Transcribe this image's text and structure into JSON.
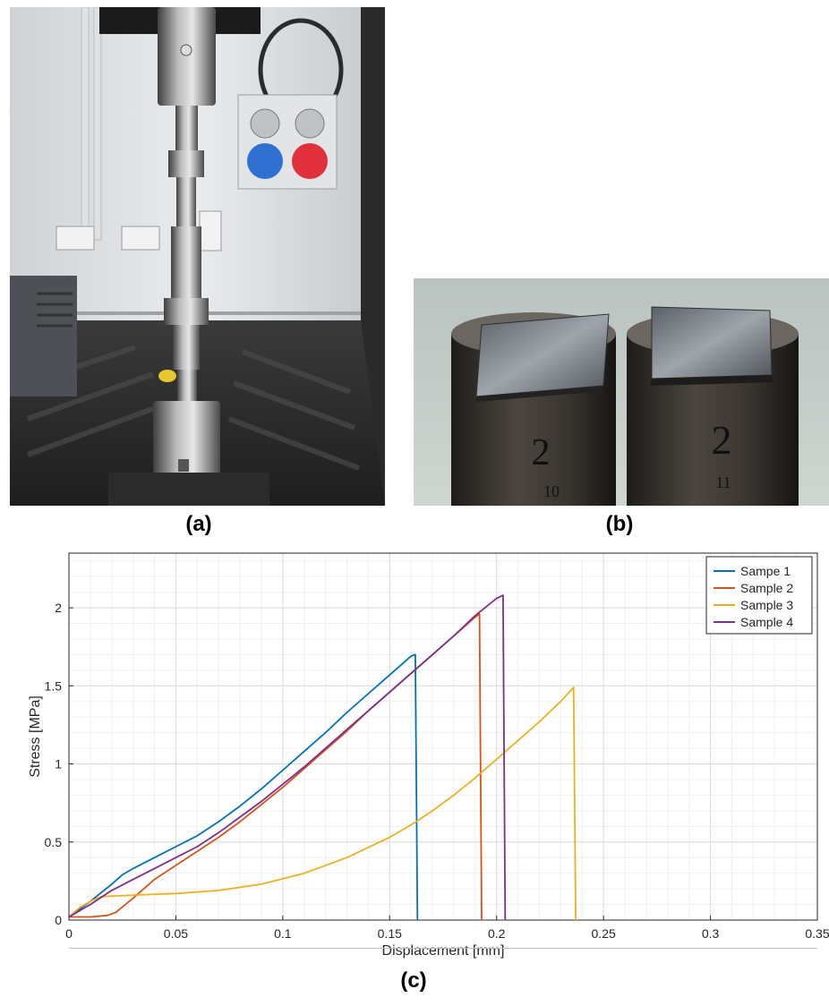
{
  "figure": {
    "captions": {
      "a": "(a)",
      "b": "(b)",
      "c": "(c)"
    }
  },
  "photo_a": {
    "icon": "tensile-testing-machine-photo"
  },
  "photo_b": {
    "icon": "bonded-specimens-photo",
    "labels": [
      {
        "number": "2",
        "sub": "10"
      },
      {
        "number": "2",
        "sub": "11"
      }
    ]
  },
  "chart_data": {
    "type": "line",
    "xlabel": "Displacement [mm]",
    "ylabel": "Stress [MPa]",
    "xlim": [
      0,
      0.35
    ],
    "ylim": [
      0,
      2.35
    ],
    "xticks": [
      0,
      0.05,
      0.1,
      0.15,
      0.2,
      0.25,
      0.3,
      0.35
    ],
    "xtick_labels": [
      "0",
      "0.05",
      "0.1",
      "0.15",
      "0.2",
      "0.25",
      "0.3",
      "0.35"
    ],
    "yticks": [
      0,
      0.5,
      1,
      1.5,
      2
    ],
    "ytick_labels": [
      "0",
      "0.5",
      "1",
      "1.5",
      "2"
    ],
    "grid": true,
    "minor_grid": true,
    "legend_position": "top-right",
    "series": [
      {
        "name": "Sampe 1",
        "color": "#0072BD",
        "points": [
          [
            0,
            0.02
          ],
          [
            0.01,
            0.12
          ],
          [
            0.02,
            0.23
          ],
          [
            0.025,
            0.29
          ],
          [
            0.03,
            0.33
          ],
          [
            0.04,
            0.4
          ],
          [
            0.05,
            0.47
          ],
          [
            0.06,
            0.54
          ],
          [
            0.07,
            0.63
          ],
          [
            0.08,
            0.73
          ],
          [
            0.09,
            0.84
          ],
          [
            0.1,
            0.96
          ],
          [
            0.11,
            1.08
          ],
          [
            0.12,
            1.2
          ],
          [
            0.13,
            1.33
          ],
          [
            0.14,
            1.45
          ],
          [
            0.15,
            1.57
          ],
          [
            0.16,
            1.69
          ],
          [
            0.162,
            1.7
          ],
          [
            0.163,
            0.0
          ]
        ]
      },
      {
        "name": "Sample 2",
        "color": "#D95319",
        "points": [
          [
            0,
            0.02
          ],
          [
            0.01,
            0.02
          ],
          [
            0.018,
            0.03
          ],
          [
            0.022,
            0.05
          ],
          [
            0.03,
            0.14
          ],
          [
            0.04,
            0.26
          ],
          [
            0.05,
            0.35
          ],
          [
            0.06,
            0.44
          ],
          [
            0.07,
            0.53
          ],
          [
            0.08,
            0.63
          ],
          [
            0.09,
            0.74
          ],
          [
            0.1,
            0.85
          ],
          [
            0.11,
            0.97
          ],
          [
            0.12,
            1.09
          ],
          [
            0.13,
            1.21
          ],
          [
            0.14,
            1.34
          ],
          [
            0.15,
            1.46
          ],
          [
            0.16,
            1.58
          ],
          [
            0.17,
            1.7
          ],
          [
            0.18,
            1.82
          ],
          [
            0.19,
            1.94
          ],
          [
            0.192,
            1.96
          ],
          [
            0.193,
            0.0
          ]
        ]
      },
      {
        "name": "Sample 3",
        "color": "#EDB120",
        "points": [
          [
            0,
            0.02
          ],
          [
            0.005,
            0.08
          ],
          [
            0.01,
            0.12
          ],
          [
            0.015,
            0.15
          ],
          [
            0.03,
            0.16
          ],
          [
            0.05,
            0.17
          ],
          [
            0.07,
            0.19
          ],
          [
            0.09,
            0.23
          ],
          [
            0.11,
            0.3
          ],
          [
            0.13,
            0.4
          ],
          [
            0.15,
            0.53
          ],
          [
            0.16,
            0.61
          ],
          [
            0.17,
            0.7
          ],
          [
            0.18,
            0.8
          ],
          [
            0.19,
            0.91
          ],
          [
            0.2,
            1.03
          ],
          [
            0.21,
            1.15
          ],
          [
            0.22,
            1.27
          ],
          [
            0.23,
            1.4
          ],
          [
            0.236,
            1.49
          ],
          [
            0.237,
            0.0
          ]
        ]
      },
      {
        "name": "Sample 4",
        "color": "#7E2F8E",
        "points": [
          [
            0,
            0.02
          ],
          [
            0.01,
            0.1
          ],
          [
            0.02,
            0.19
          ],
          [
            0.03,
            0.26
          ],
          [
            0.04,
            0.33
          ],
          [
            0.05,
            0.4
          ],
          [
            0.06,
            0.47
          ],
          [
            0.07,
            0.56
          ],
          [
            0.08,
            0.66
          ],
          [
            0.09,
            0.76
          ],
          [
            0.1,
            0.87
          ],
          [
            0.11,
            0.98
          ],
          [
            0.12,
            1.1
          ],
          [
            0.13,
            1.22
          ],
          [
            0.14,
            1.34
          ],
          [
            0.15,
            1.46
          ],
          [
            0.16,
            1.58
          ],
          [
            0.17,
            1.7
          ],
          [
            0.18,
            1.82
          ],
          [
            0.19,
            1.95
          ],
          [
            0.2,
            2.06
          ],
          [
            0.203,
            2.08
          ],
          [
            0.204,
            0.0
          ]
        ]
      }
    ]
  }
}
